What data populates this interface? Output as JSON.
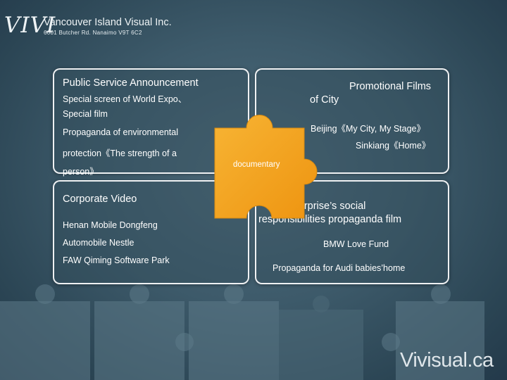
{
  "header": {
    "logo_text": "VIVI",
    "company_name": "Vancouver Island Visual Inc.",
    "address": "6001 Butcher Rd. Nanaimo V9T 6C2"
  },
  "panels": {
    "public_service": {
      "title": "Public Service Announcement",
      "items": [
        "Special screen of World Expo、",
        "Special film",
        "Propaganda of environmental",
        "protection《The strength of a",
        "person》"
      ]
    },
    "promotional": {
      "title_line1": "Promotional Films",
      "title_line2": "of City",
      "items": [
        "Beijing《My City, My Stage》",
        "Sinkiang《Home》"
      ]
    },
    "corporate": {
      "title": "Corporate Video",
      "items": [
        "Henan Mobile   Dongfeng",
        "Automobile  Nestle",
        "FAW Qiming Software Park"
      ]
    },
    "social": {
      "title_line1": "Enterprise’s social",
      "title_line2": "responsibilities propaganda film",
      "items": [
        "BMW Love Fund",
        "Propaganda for Audi babies’home"
      ]
    }
  },
  "center_piece": {
    "label": "documentary",
    "color": "#f4a11a"
  },
  "watermark": "Vivisual.ca"
}
